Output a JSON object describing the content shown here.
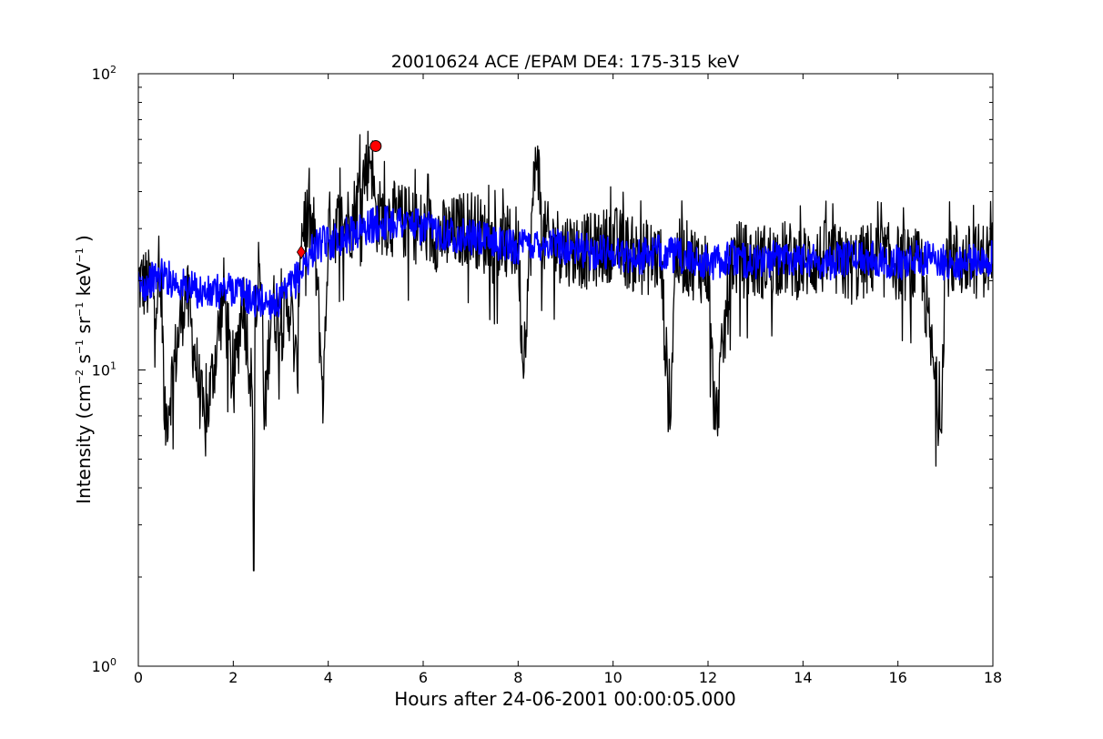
{
  "chart_data": {
    "type": "line",
    "title": "20010624 ACE /EPAM DE4: 175-315 keV",
    "xlabel": "Hours after 24-06-2001 00:00:05.000",
    "ylabel": {
      "prefix": "Intensity (cm",
      "sup1": "−2",
      "mid1": " s",
      "sup2": "−1",
      "mid2": " sr",
      "sup3": "−1",
      "mid3": " keV",
      "sup4": "−1",
      "suffix": " )"
    },
    "xlim": [
      0,
      18
    ],
    "ylim": [
      1,
      100
    ],
    "yscale": "log",
    "grid": false,
    "x_ticks": [
      {
        "value": 0,
        "label": "0"
      },
      {
        "value": 2,
        "label": "2"
      },
      {
        "value": 4,
        "label": "4"
      },
      {
        "value": 6,
        "label": "6"
      },
      {
        "value": 8,
        "label": "8"
      },
      {
        "value": 10,
        "label": "10"
      },
      {
        "value": 12,
        "label": "12"
      },
      {
        "value": 14,
        "label": "14"
      },
      {
        "value": 16,
        "label": "16"
      },
      {
        "value": 18,
        "label": "18"
      }
    ],
    "y_ticks": [
      {
        "value": 1,
        "base": "10",
        "exp": "0"
      },
      {
        "value": 10,
        "base": "10",
        "exp": "1"
      },
      {
        "value": 100,
        "base": "10",
        "exp": "2"
      }
    ],
    "series": [
      {
        "color": "#000000",
        "style": "raw",
        "x": [
          0.0,
          0.5,
          0.55,
          1.0,
          1.4,
          1.8,
          2.0,
          2.2,
          2.4,
          2.43,
          2.46,
          2.6,
          2.65,
          2.8,
          3.0,
          3.2,
          3.35,
          3.4,
          3.5,
          3.7,
          3.9,
          4.0,
          4.5,
          4.9,
          5.0,
          5.5,
          6.0,
          6.5,
          7.0,
          7.5,
          8.0,
          8.1,
          8.4,
          8.5,
          9.0,
          9.5,
          10.0,
          10.5,
          11.0,
          11.2,
          11.3,
          11.5,
          12.0,
          12.15,
          12.5,
          13.0,
          13.5,
          14.0,
          14.5,
          15.0,
          15.5,
          16.0,
          16.5,
          16.9,
          17.0,
          17.5,
          18.0
        ],
        "y": [
          20,
          18,
          6.3,
          19,
          6.3,
          18,
          8.5,
          18,
          8.5,
          2.1,
          15,
          20,
          6.3,
          17,
          14,
          17,
          9,
          26,
          33,
          29,
          8,
          30,
          32,
          55,
          33,
          32,
          30,
          28,
          31,
          26,
          27,
          10.5,
          60,
          28,
          26,
          25,
          27,
          24,
          24,
          6.3,
          24,
          24,
          22,
          6.3,
          24,
          23,
          24,
          23,
          24,
          22,
          24,
          23,
          22,
          6.3,
          24,
          23,
          24
        ]
      },
      {
        "color": "#0000ff",
        "style": "smoothed",
        "x": [
          0.0,
          0.5,
          1.0,
          1.5,
          2.0,
          2.5,
          3.0,
          3.4,
          3.7,
          4.0,
          4.5,
          5.0,
          5.5,
          6.0,
          6.5,
          7.0,
          7.5,
          8.0,
          8.5,
          9.0,
          9.5,
          10.0,
          10.5,
          11.0,
          11.5,
          12.0,
          12.5,
          13.0,
          13.5,
          14.0,
          14.5,
          15.0,
          15.5,
          16.0,
          16.5,
          17.0,
          17.5,
          18.0
        ],
        "y": [
          19,
          21,
          19,
          18,
          19,
          17,
          17,
          21,
          26,
          27,
          29,
          31,
          32,
          30,
          29,
          28,
          27,
          26,
          27,
          26,
          25,
          25,
          24,
          25,
          24,
          23,
          24,
          23,
          24,
          24,
          23,
          24,
          24,
          23,
          24,
          23,
          23,
          24
        ]
      }
    ],
    "markers": [
      {
        "x": 3.43,
        "y": 25,
        "shape": "diamond",
        "color": "#ff0000"
      },
      {
        "x": 5.0,
        "y": 57,
        "shape": "circle",
        "color": "#ff0000"
      }
    ]
  }
}
